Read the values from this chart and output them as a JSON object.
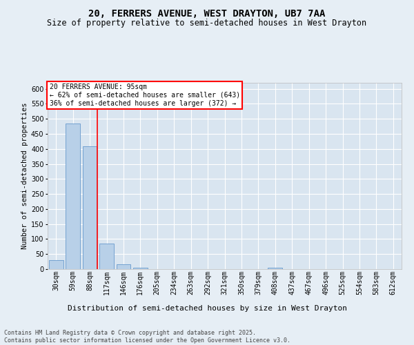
{
  "title_line1": "20, FERRERS AVENUE, WEST DRAYTON, UB7 7AA",
  "title_line2": "Size of property relative to semi-detached houses in West Drayton",
  "xlabel": "Distribution of semi-detached houses by size in West Drayton",
  "ylabel": "Number of semi-detached properties",
  "footer": "Contains HM Land Registry data © Crown copyright and database right 2025.\nContains public sector information licensed under the Open Government Licence v3.0.",
  "bins": [
    "30sqm",
    "59sqm",
    "88sqm",
    "117sqm",
    "146sqm",
    "176sqm",
    "205sqm",
    "234sqm",
    "263sqm",
    "292sqm",
    "321sqm",
    "350sqm",
    "379sqm",
    "408sqm",
    "437sqm",
    "467sqm",
    "496sqm",
    "525sqm",
    "554sqm",
    "583sqm",
    "612sqm"
  ],
  "values": [
    30,
    485,
    408,
    85,
    15,
    5,
    0,
    0,
    0,
    0,
    0,
    0,
    0,
    5,
    0,
    0,
    0,
    0,
    0,
    0,
    0
  ],
  "bar_color": "#b8d0e8",
  "bar_edge_color": "#6699cc",
  "vline_color": "red",
  "vline_x": 2.43,
  "annotation_text": "20 FERRERS AVENUE: 95sqm\n← 62% of semi-detached houses are smaller (643)\n36% of semi-detached houses are larger (372) →",
  "annotation_box_color": "red",
  "annotation_bg_color": "white",
  "ylim": [
    0,
    620
  ],
  "yticks": [
    0,
    50,
    100,
    150,
    200,
    250,
    300,
    350,
    400,
    450,
    500,
    550,
    600
  ],
  "bg_color": "#e6eef5",
  "plot_bg_color": "#d9e5f0",
  "grid_color": "white",
  "title_fontsize": 10,
  "subtitle_fontsize": 8.5,
  "ylabel_fontsize": 7.5,
  "xlabel_fontsize": 8,
  "tick_fontsize": 7,
  "annot_fontsize": 7,
  "footer_fontsize": 6
}
